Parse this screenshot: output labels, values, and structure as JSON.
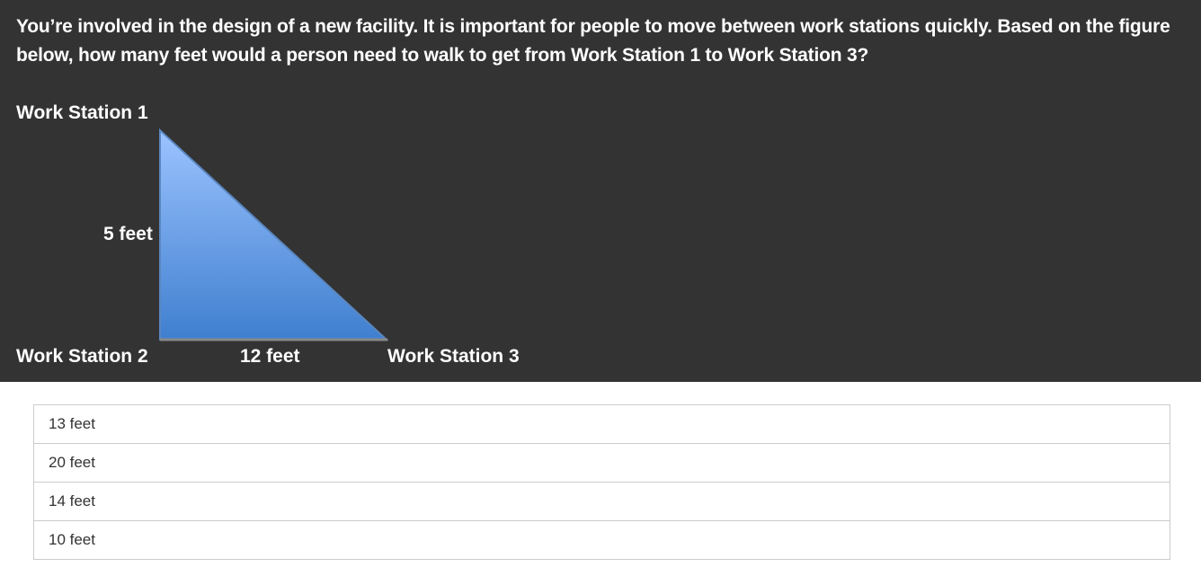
{
  "question": "You’re involved in the design of a new facility. It is important for people to move between work stations quickly. Based on the figure below, how many feet would a person need to walk to get from Work Station 1 to Work Station 3?",
  "figure": {
    "station_1": "Work Station 1",
    "station_2": "Work Station 2",
    "station_3": "Work Station 3",
    "vertical_side": "5 feet",
    "horizontal_side": "12 feet",
    "fill_top": "#9cc3ff",
    "fill_bottom": "#3f7fcf"
  },
  "options": [
    "13 feet",
    "20 feet",
    "14 feet",
    "10 feet"
  ]
}
